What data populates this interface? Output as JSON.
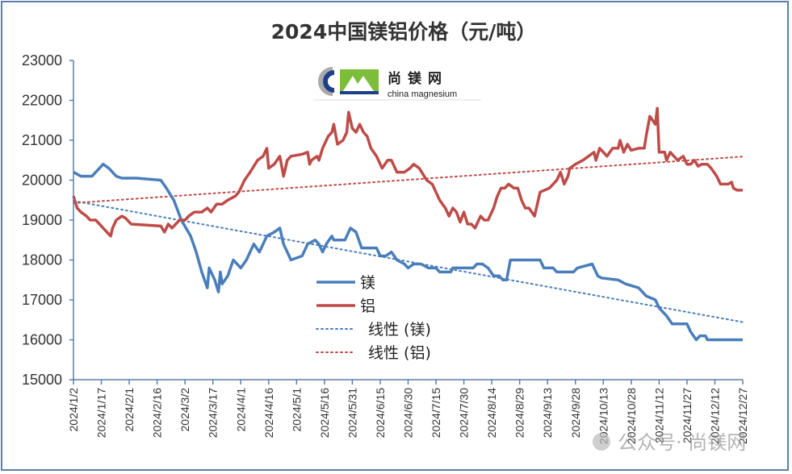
{
  "chart_data": {
    "type": "line",
    "title": "2024中国镁铝价格（元/吨）",
    "xlabel": "",
    "ylabel": "",
    "ylim": [
      15000,
      23000
    ],
    "yticks": [
      15000,
      16000,
      17000,
      18000,
      19000,
      20000,
      21000,
      22000,
      23000
    ],
    "xlim": [
      "2024/1/2",
      "2024/12/27"
    ],
    "xticks": [
      "2024/1/2",
      "2024/1/17",
      "2024/2/1",
      "2024/2/16",
      "2024/3/2",
      "2024/3/17",
      "2024/4/1",
      "2024/4/16",
      "2024/5/1",
      "2024/5/16",
      "2024/5/31",
      "2024/6/15",
      "2024/6/30",
      "2024/7/15",
      "2024/7/30",
      "2024/8/14",
      "2024/8/29",
      "2024/9/13",
      "2024/9/28",
      "2024/10/13",
      "2024/10/28",
      "2024/11/12",
      "2024/11/27",
      "2024/12/12",
      "2024/12/27"
    ],
    "grid": false,
    "legend_placement": "center",
    "series": [
      {
        "name": "镁",
        "color": "#4a7ebb",
        "style": "solid",
        "points": [
          [
            "2024/1/2",
            20200
          ],
          [
            "2024/1/6",
            20100
          ],
          [
            "2024/1/12",
            20100
          ],
          [
            "2024/1/14",
            20200
          ],
          [
            "2024/1/18",
            20400
          ],
          [
            "2024/1/21",
            20300
          ],
          [
            "2024/1/25",
            20100
          ],
          [
            "2024/1/28",
            20050
          ],
          [
            "2024/2/5",
            20050
          ],
          [
            "2024/2/18",
            20000
          ],
          [
            "2024/2/21",
            19800
          ],
          [
            "2024/2/25",
            19500
          ],
          [
            "2024/2/29",
            19000
          ],
          [
            "2024/3/5",
            18600
          ],
          [
            "2024/3/8",
            18200
          ],
          [
            "2024/3/11",
            17700
          ],
          [
            "2024/3/14",
            17300
          ],
          [
            "2024/3/15",
            17800
          ],
          [
            "2024/3/18",
            17500
          ],
          [
            "2024/3/20",
            17200
          ],
          [
            "2024/3/21",
            17700
          ],
          [
            "2024/3/22",
            17400
          ],
          [
            "2024/3/25",
            17600
          ],
          [
            "2024/3/28",
            18000
          ],
          [
            "2024/4/1",
            17800
          ],
          [
            "2024/4/4",
            18000
          ],
          [
            "2024/4/8",
            18400
          ],
          [
            "2024/4/11",
            18200
          ],
          [
            "2024/4/15",
            18600
          ],
          [
            "2024/4/19",
            18700
          ],
          [
            "2024/4/22",
            18800
          ],
          [
            "2024/4/24",
            18400
          ],
          [
            "2024/4/28",
            18000
          ],
          [
            "2024/5/4",
            18100
          ],
          [
            "2024/5/7",
            18400
          ],
          [
            "2024/5/11",
            18500
          ],
          [
            "2024/5/13",
            18400
          ],
          [
            "2024/5/15",
            18200
          ],
          [
            "2024/5/17",
            18400
          ],
          [
            "2024/5/20",
            18600
          ],
          [
            "2024/5/21",
            18500
          ],
          [
            "2024/5/27",
            18500
          ],
          [
            "2024/5/30",
            18800
          ],
          [
            "2024/6/2",
            18700
          ],
          [
            "2024/6/5",
            18300
          ],
          [
            "2024/6/13",
            18300
          ],
          [
            "2024/6/15",
            18100
          ],
          [
            "2024/6/18",
            18100
          ],
          [
            "2024/6/21",
            18200
          ],
          [
            "2024/6/24",
            18000
          ],
          [
            "2024/6/28",
            17900
          ],
          [
            "2024/6/30",
            17800
          ],
          [
            "2024/7/3",
            17900
          ],
          [
            "2024/7/7",
            17900
          ],
          [
            "2024/7/11",
            17800
          ],
          [
            "2024/7/15",
            17800
          ],
          [
            "2024/7/17",
            17700
          ],
          [
            "2024/7/23",
            17700
          ],
          [
            "2024/7/24",
            17800
          ],
          [
            "2024/8/4",
            17800
          ],
          [
            "2024/8/6",
            17900
          ],
          [
            "2024/8/9",
            17900
          ],
          [
            "2024/8/12",
            17800
          ],
          [
            "2024/8/15",
            17600
          ],
          [
            "2024/8/18",
            17600
          ],
          [
            "2024/8/20",
            17500
          ],
          [
            "2024/8/22",
            17500
          ],
          [
            "2024/8/24",
            18000
          ],
          [
            "2024/9/9",
            18000
          ],
          [
            "2024/9/11",
            17800
          ],
          [
            "2024/9/16",
            17800
          ],
          [
            "2024/9/18",
            17700
          ],
          [
            "2024/9/27",
            17700
          ],
          [
            "2024/9/29",
            17800
          ],
          [
            "2024/10/7",
            17900
          ],
          [
            "2024/10/10",
            17600
          ],
          [
            "2024/10/12",
            17550
          ],
          [
            "2024/10/21",
            17500
          ],
          [
            "2024/10/25",
            17400
          ],
          [
            "2024/11/1",
            17300
          ],
          [
            "2024/11/5",
            17100
          ],
          [
            "2024/11/10",
            17000
          ],
          [
            "2024/11/12",
            16800
          ],
          [
            "2024/11/16",
            16600
          ],
          [
            "2024/11/19",
            16400
          ],
          [
            "2024/11/27",
            16400
          ],
          [
            "2024/11/29",
            16200
          ],
          [
            "2024/12/2",
            16000
          ],
          [
            "2024/12/4",
            16100
          ],
          [
            "2024/12/7",
            16100
          ],
          [
            "2024/12/8",
            16000
          ],
          [
            "2024/12/27",
            16000
          ]
        ]
      },
      {
        "name": "铝",
        "color": "#be4b48",
        "style": "solid",
        "points": [
          [
            "2024/1/2",
            19600
          ],
          [
            "2024/1/4",
            19300
          ],
          [
            "2024/1/6",
            19200
          ],
          [
            "2024/1/9",
            19100
          ],
          [
            "2024/1/11",
            19000
          ],
          [
            "2024/1/14",
            19000
          ],
          [
            "2024/1/18",
            18800
          ],
          [
            "2024/1/20",
            18700
          ],
          [
            "2024/1/22",
            18600
          ],
          [
            "2024/1/23",
            18800
          ],
          [
            "2024/1/25",
            19000
          ],
          [
            "2024/1/28",
            19100
          ],
          [
            "2024/1/30",
            19050
          ],
          [
            "2024/2/2",
            18900
          ],
          [
            "2024/2/18",
            18850
          ],
          [
            "2024/2/20",
            18700
          ],
          [
            "2024/2/22",
            18900
          ],
          [
            "2024/2/24",
            18800
          ],
          [
            "2024/2/26",
            18900
          ],
          [
            "2024/2/28",
            19000
          ],
          [
            "2024/3/2",
            19000
          ],
          [
            "2024/3/4",
            19100
          ],
          [
            "2024/3/7",
            19200
          ],
          [
            "2024/3/11",
            19200
          ],
          [
            "2024/3/14",
            19300
          ],
          [
            "2024/3/16",
            19200
          ],
          [
            "2024/3/19",
            19400
          ],
          [
            "2024/3/22",
            19400
          ],
          [
            "2024/3/25",
            19500
          ],
          [
            "2024/3/29",
            19600
          ],
          [
            "2024/3/31",
            19700
          ],
          [
            "2024/4/3",
            20000
          ],
          [
            "2024/4/6",
            20200
          ],
          [
            "2024/4/10",
            20500
          ],
          [
            "2024/4/13",
            20600
          ],
          [
            "2024/4/15",
            20800
          ],
          [
            "2024/4/16",
            20300
          ],
          [
            "2024/4/19",
            20400
          ],
          [
            "2024/4/22",
            20600
          ],
          [
            "2024/4/24",
            20100
          ],
          [
            "2024/4/26",
            20500
          ],
          [
            "2024/4/28",
            20600
          ],
          [
            "2024/5/4",
            20650
          ],
          [
            "2024/5/7",
            20700
          ],
          [
            "2024/5/8",
            20400
          ],
          [
            "2024/5/9",
            20500
          ],
          [
            "2024/5/12",
            20600
          ],
          [
            "2024/5/13",
            20500
          ],
          [
            "2024/5/15",
            20800
          ],
          [
            "2024/5/18",
            21100
          ],
          [
            "2024/5/20",
            21200
          ],
          [
            "2024/5/21",
            21400
          ],
          [
            "2024/5/23",
            20900
          ],
          [
            "2024/5/26",
            21000
          ],
          [
            "2024/5/28",
            21200
          ],
          [
            "2024/5/29",
            21700
          ],
          [
            "2024/5/31",
            21300
          ],
          [
            "2024/6/2",
            21200
          ],
          [
            "2024/6/4",
            21400
          ],
          [
            "2024/6/6",
            21200
          ],
          [
            "2024/6/8",
            21100
          ],
          [
            "2024/6/10",
            20800
          ],
          [
            "2024/6/13",
            20600
          ],
          [
            "2024/6/16",
            20300
          ],
          [
            "2024/6/19",
            20500
          ],
          [
            "2024/6/21",
            20500
          ],
          [
            "2024/6/24",
            20200
          ],
          [
            "2024/6/28",
            20200
          ],
          [
            "2024/7/1",
            20300
          ],
          [
            "2024/7/3",
            20400
          ],
          [
            "2024/7/6",
            20300
          ],
          [
            "2024/7/10",
            20000
          ],
          [
            "2024/7/13",
            19900
          ],
          [
            "2024/7/15",
            19700
          ],
          [
            "2024/7/17",
            19500
          ],
          [
            "2024/7/20",
            19300
          ],
          [
            "2024/7/22",
            19100
          ],
          [
            "2024/7/24",
            19300
          ],
          [
            "2024/7/26",
            19200
          ],
          [
            "2024/7/28",
            18950
          ],
          [
            "2024/7/30",
            19200
          ],
          [
            "2024/8/1",
            18900
          ],
          [
            "2024/8/3",
            18900
          ],
          [
            "2024/8/5",
            18800
          ],
          [
            "2024/8/8",
            19100
          ],
          [
            "2024/8/10",
            19000
          ],
          [
            "2024/8/12",
            19000
          ],
          [
            "2024/8/15",
            19300
          ],
          [
            "2024/8/17",
            19600
          ],
          [
            "2024/8/19",
            19800
          ],
          [
            "2024/8/21",
            19800
          ],
          [
            "2024/8/23",
            19900
          ],
          [
            "2024/8/26",
            19800
          ],
          [
            "2024/8/28",
            19800
          ],
          [
            "2024/8/30",
            19500
          ],
          [
            "2024/9/1",
            19300
          ],
          [
            "2024/9/3",
            19300
          ],
          [
            "2024/9/6",
            19100
          ],
          [
            "2024/9/9",
            19700
          ],
          [
            "2024/9/14",
            19800
          ],
          [
            "2024/9/16",
            19900
          ],
          [
            "2024/9/18",
            20000
          ],
          [
            "2024/9/20",
            20200
          ],
          [
            "2024/9/22",
            19900
          ],
          [
            "2024/9/24",
            20100
          ],
          [
            "2024/9/25",
            20300
          ],
          [
            "2024/9/28",
            20400
          ],
          [
            "2024/10/2",
            20500
          ],
          [
            "2024/10/5",
            20600
          ],
          [
            "2024/10/8",
            20700
          ],
          [
            "2024/10/9",
            20500
          ],
          [
            "2024/10/11",
            20800
          ],
          [
            "2024/10/13",
            20700
          ],
          [
            "2024/10/15",
            20600
          ],
          [
            "2024/10/18",
            20800
          ],
          [
            "2024/10/21",
            20800
          ],
          [
            "2024/10/22",
            21000
          ],
          [
            "2024/10/24",
            20700
          ],
          [
            "2024/10/26",
            20900
          ],
          [
            "2024/10/28",
            20750
          ],
          [
            "2024/11/1",
            20800
          ],
          [
            "2024/11/4",
            20800
          ],
          [
            "2024/11/5",
            21100
          ],
          [
            "2024/11/7",
            21600
          ],
          [
            "2024/11/10",
            21400
          ],
          [
            "2024/11/11",
            21800
          ],
          [
            "2024/11/12",
            20700
          ],
          [
            "2024/11/15",
            20700
          ],
          [
            "2024/11/16",
            20500
          ],
          [
            "2024/11/18",
            20700
          ],
          [
            "2024/11/22",
            20500
          ],
          [
            "2024/11/25",
            20600
          ],
          [
            "2024/11/27",
            20400
          ],
          [
            "2024/11/29",
            20400
          ],
          [
            "2024/12/1",
            20500
          ],
          [
            "2024/12/3",
            20350
          ],
          [
            "2024/12/5",
            20400
          ],
          [
            "2024/12/8",
            20400
          ],
          [
            "2024/12/10",
            20300
          ],
          [
            "2024/12/13",
            20100
          ],
          [
            "2024/12/15",
            19900
          ],
          [
            "2024/12/19",
            19900
          ],
          [
            "2024/12/21",
            19950
          ],
          [
            "2024/12/22",
            19800
          ],
          [
            "2024/12/24",
            19750
          ],
          [
            "2024/12/27",
            19750
          ]
        ]
      }
    ],
    "trendlines": [
      {
        "name": "线性 (镁)",
        "of": "镁",
        "type": "linear",
        "color": "#4a7ebb",
        "style": "dotted"
      },
      {
        "name": "线性 (铝)",
        "of": "铝",
        "type": "linear",
        "color": "#be4b48",
        "style": "dotted"
      }
    ]
  },
  "logo": {
    "text_cn": "尚镁网",
    "text_en": "china magnesium"
  },
  "watermark": {
    "text": "公众号· 尚镁网"
  },
  "colors": {
    "frame": "#5b7fa8",
    "axis": "#5b7fa8",
    "magnesium": "#4a7ebb",
    "aluminum": "#be4b48"
  }
}
